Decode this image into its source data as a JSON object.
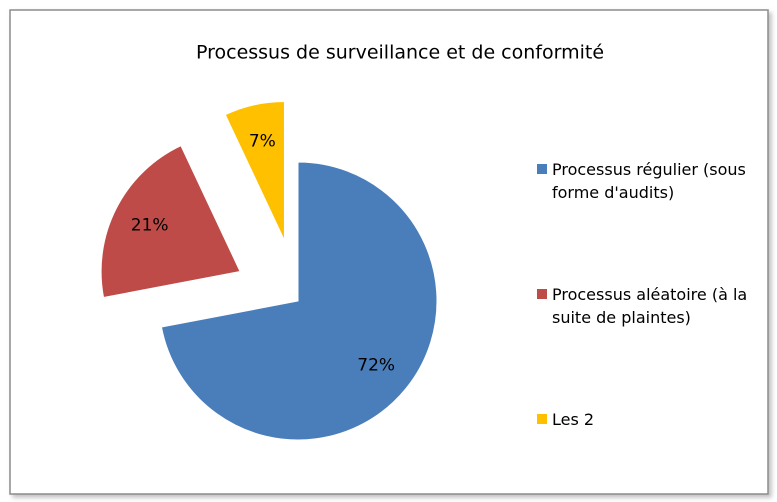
{
  "chart_data": {
    "type": "pie",
    "title": "Processus de surveillance et de conformité",
    "categories": [
      "Processus régulier (sous forme d'audits)",
      "Processus aléatoire (à la suite de plaintes)",
      "Les 2"
    ],
    "values": [
      72,
      21,
      7
    ],
    "value_labels": [
      "72%",
      "21%",
      "7%"
    ],
    "colors": [
      "#4a7ebb",
      "#be4b48",
      "#ffc000"
    ],
    "legend": "right"
  }
}
